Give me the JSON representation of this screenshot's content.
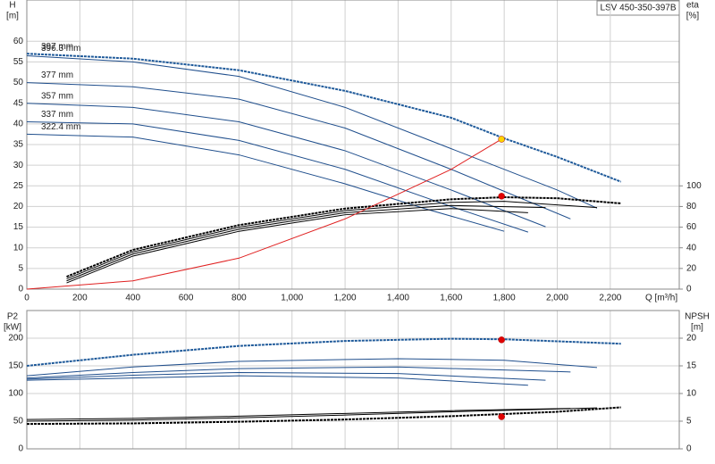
{
  "chart_data": [
    {
      "type": "line",
      "title": "LSV 450-350-397B",
      "ylabel": "H",
      "yunit": "[m]",
      "y2label": "eta",
      "y2unit": "[%]",
      "xlabel": "Q [m³/h]",
      "xlim": [
        0,
        2460
      ],
      "ylim": [
        0,
        70
      ],
      "y2lim": [
        0,
        280
      ],
      "grid": true,
      "xticks": [
        0,
        200,
        400,
        600,
        800,
        {
          "value": 1000,
          "label": "1,000"
        },
        {
          "value": 1200,
          "label": "1,200"
        },
        {
          "value": 1400,
          "label": "1,400"
        },
        {
          "value": 1600,
          "label": "1,600"
        },
        {
          "value": 1800,
          "label": "1,800"
        },
        {
          "value": 2000,
          "label": "2,000"
        },
        {
          "value": 2200,
          "label": "2,200"
        }
      ],
      "yticks": [
        0,
        5,
        10,
        15,
        20,
        25,
        30,
        35,
        40,
        45,
        50,
        55,
        60
      ],
      "y2ticks": [
        0,
        20,
        40,
        60,
        80,
        100
      ],
      "series": [
        {
          "name": "397 mm",
          "color": "#1f5a9a",
          "dash": true,
          "x": [
            0,
            400,
            800,
            1200,
            1600,
            1800,
            2000,
            2240
          ],
          "values": [
            57,
            55.8,
            53,
            48,
            41.5,
            36.5,
            32,
            26
          ]
        },
        {
          "name": "396.3 mm",
          "color": "#1f4e8c",
          "x": [
            0,
            400,
            800,
            1200,
            1600,
            2000,
            2150
          ],
          "values": [
            56.5,
            55,
            51.5,
            44,
            34,
            24,
            19.6
          ]
        },
        {
          "name": "377 mm",
          "color": "#1f4e8c",
          "x": [
            0,
            400,
            800,
            1200,
            1600,
            2050
          ],
          "values": [
            50,
            49,
            46,
            39,
            29,
            17
          ]
        },
        {
          "name": "357 mm",
          "color": "#1f4e8c",
          "x": [
            0,
            400,
            800,
            1200,
            1600,
            1956
          ],
          "values": [
            45,
            44,
            40.5,
            33.5,
            24,
            15.1
          ]
        },
        {
          "name": "337 mm",
          "color": "#1f4e8c",
          "x": [
            0,
            400,
            800,
            1200,
            1600,
            1890
          ],
          "values": [
            40.5,
            40,
            36,
            29,
            20,
            13.8
          ]
        },
        {
          "name": "322.4 mm",
          "color": "#1f4e8c",
          "x": [
            0,
            400,
            800,
            1200,
            1500,
            1800
          ],
          "values": [
            37.5,
            36.8,
            32.5,
            25.5,
            19.5,
            14
          ]
        },
        {
          "color": "#000000",
          "dash": true,
          "axis": "y2",
          "x": [
            150,
            400,
            800,
            1200,
            1600,
            1800,
            2000,
            2240
          ],
          "values": [
            12,
            38,
            62,
            78,
            87,
            89,
            88,
            83
          ]
        },
        {
          "color": "#000000",
          "axis": "y2",
          "x": [
            150,
            400,
            800,
            1200,
            1600,
            1800,
            2150
          ],
          "values": [
            10,
            36,
            60,
            76,
            84,
            85,
            79
          ]
        },
        {
          "color": "#000000",
          "axis": "y2",
          "x": [
            150,
            400,
            800,
            1200,
            1600,
            1956
          ],
          "values": [
            8,
            34,
            58,
            74,
            81,
            79
          ]
        },
        {
          "color": "#000000",
          "axis": "y2",
          "x": [
            150,
            400,
            800,
            1200,
            1600,
            1890
          ],
          "values": [
            6,
            32,
            56,
            72,
            78,
            74
          ]
        },
        {
          "color": "#e02020",
          "x": [
            0,
            400,
            800,
            1200,
            1600,
            1790
          ],
          "values": [
            0,
            2,
            7.5,
            17,
            29,
            36.3
          ]
        }
      ],
      "points": [
        {
          "x": 1790,
          "y": 36.3,
          "color": "#ffd400"
        },
        {
          "x": 1790,
          "y": 90,
          "color": "#e00000",
          "axis": "y2"
        }
      ]
    },
    {
      "type": "line",
      "ylabel": "P2",
      "yunit": "[kW]",
      "y2label": "NPSH",
      "y2unit": "[m]",
      "xlim": [
        0,
        2460
      ],
      "ylim": [
        0,
        250
      ],
      "y2lim": [
        0,
        25
      ],
      "grid": true,
      "yticks": [
        0,
        50,
        100,
        150,
        200
      ],
      "y2ticks": [
        0,
        5,
        10,
        15,
        20
      ],
      "series": [
        {
          "color": "#1f5a9a",
          "dash": true,
          "x": [
            0,
            400,
            800,
            1200,
            1600,
            1800,
            2240
          ],
          "values": [
            150,
            170,
            186,
            195,
            199,
            198,
            190
          ]
        },
        {
          "color": "#1f4e8c",
          "x": [
            0,
            400,
            800,
            1400,
            1800,
            2150
          ],
          "values": [
            132,
            148,
            158,
            163,
            160,
            147
          ]
        },
        {
          "color": "#1f4e8c",
          "x": [
            0,
            400,
            800,
            1400,
            2050
          ],
          "values": [
            128,
            138,
            145,
            148,
            139
          ]
        },
        {
          "color": "#1f4e8c",
          "x": [
            0,
            400,
            800,
            1400,
            1956
          ],
          "values": [
            126,
            133,
            138,
            136,
            124
          ]
        },
        {
          "color": "#1f4e8c",
          "x": [
            0,
            400,
            800,
            1400,
            1890
          ],
          "values": [
            124,
            128,
            132,
            128,
            115
          ]
        },
        {
          "color": "#000000",
          "dash": true,
          "axis": "y2",
          "x": [
            0,
            400,
            800,
            1200,
            1600,
            2000,
            2240
          ],
          "values": [
            4.5,
            4.6,
            4.9,
            5.3,
            5.9,
            6.7,
            7.5
          ]
        },
        {
          "color": "#000000",
          "axis": "y2",
          "x": [
            0,
            400,
            800,
            1200,
            1600,
            2150
          ],
          "values": [
            5,
            5.2,
            5.6,
            6.1,
            6.7,
            7.4
          ]
        },
        {
          "color": "#000000",
          "axis": "y2",
          "x": [
            0,
            400,
            800,
            1200,
            1600,
            2050
          ],
          "values": [
            5.3,
            5.5,
            5.9,
            6.4,
            6.9,
            7.3
          ]
        }
      ],
      "points": [
        {
          "x": 1790,
          "y": 197,
          "color": "#e00000"
        },
        {
          "x": 1790,
          "y": 5.8,
          "color": "#e00000",
          "axis": "y2"
        }
      ]
    }
  ]
}
